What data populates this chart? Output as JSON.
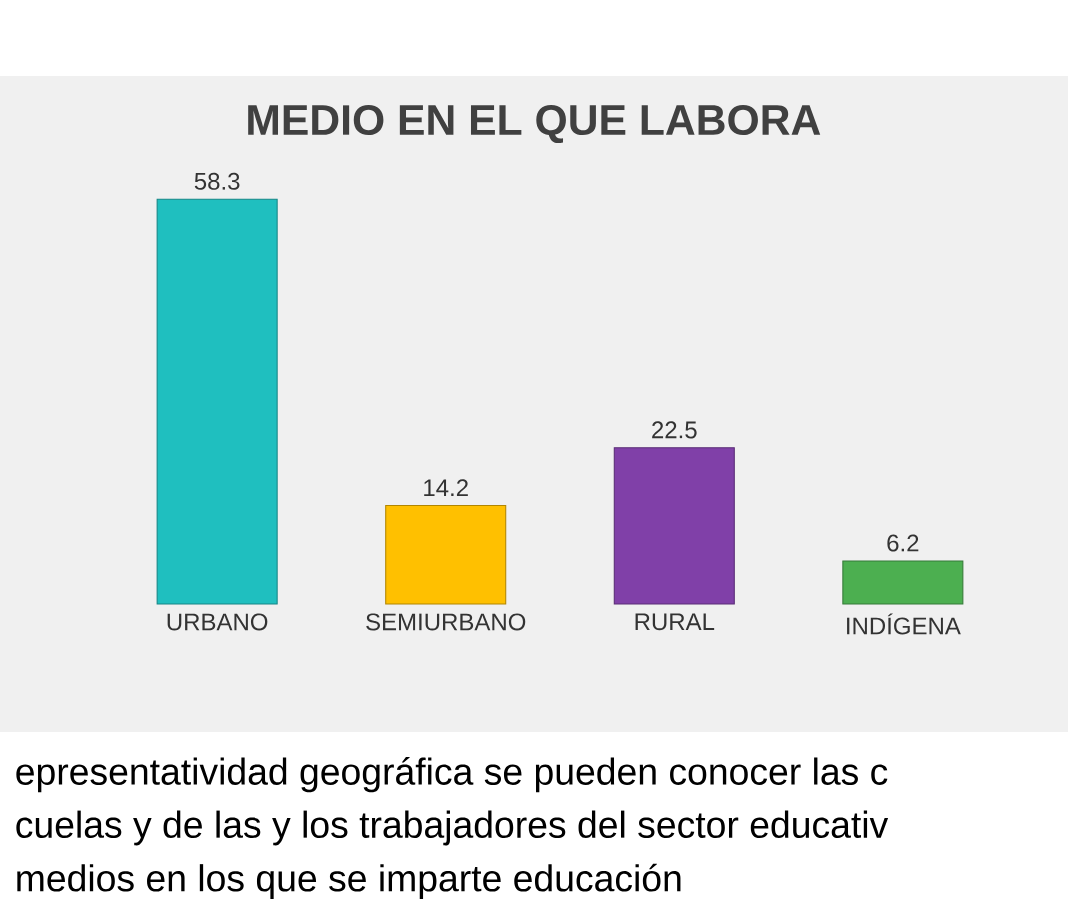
{
  "chart_data": {
    "type": "bar",
    "title": "MEDIO EN EL QUE LABORA",
    "categories": [
      "URBANO",
      "SEMIURBANO",
      "RURAL",
      "INDÍGENA"
    ],
    "values": [
      58.3,
      14.2,
      22.5,
      6.2
    ],
    "colors": [
      "#1fbfbf",
      "#ffc000",
      "#8040a8",
      "#4caf50"
    ],
    "data_labels": true,
    "tick_labels": "x",
    "annotations": [
      "epresentatividad geográfica se pueden conocer las c",
      "cuelas y de las y los trabajadores del sector educativ",
      "medios en los que se imparte educación"
    ]
  }
}
